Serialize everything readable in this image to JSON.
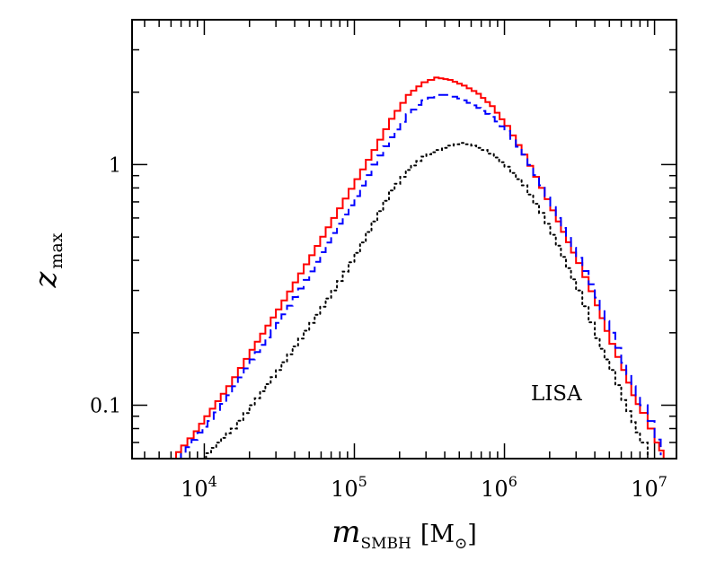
{
  "chart_data": {
    "type": "line",
    "xscale": "log",
    "yscale": "log",
    "xlim": [
      3300,
      14000000
    ],
    "ylim": [
      0.06,
      4.0
    ],
    "grid": false,
    "legend": "none",
    "title": "",
    "xlabel": {
      "var": "m",
      "sub": "SMBH",
      "unit_open": "[M",
      "unit_sym": "⊙",
      "unit_close": "]"
    },
    "ylabel": {
      "var": "z",
      "sub": "max"
    },
    "x_ticks": [
      {
        "value": 10000,
        "base": "10",
        "exp": "4"
      },
      {
        "value": 100000,
        "base": "10",
        "exp": "5"
      },
      {
        "value": 1000000,
        "base": "10",
        "exp": "6"
      },
      {
        "value": 10000000,
        "base": "10",
        "exp": "7"
      }
    ],
    "y_ticks": [
      {
        "value": 0.1,
        "label": "0.1"
      },
      {
        "value": 1,
        "label": "1"
      }
    ],
    "annotations": [
      {
        "text": "LISA",
        "x": 1500000,
        "y": 0.105
      }
    ],
    "series": [
      {
        "color": "#ff0000",
        "style": "solid",
        "x": [
          6000,
          7000,
          8500,
          10000,
          14000,
          20000,
          30000,
          50000,
          70000,
          100000,
          130000,
          170000,
          220000,
          280000,
          340000,
          420000,
          520000,
          650000,
          800000,
          1000000,
          1300000,
          1700000,
          2200000,
          3000000,
          4000000,
          5000000,
          6000000,
          7000000,
          8000000,
          9000000,
          10000000,
          11500000
        ],
        "y": [
          0.06,
          0.068,
          0.078,
          0.09,
          0.12,
          0.17,
          0.25,
          0.42,
          0.6,
          0.87,
          1.15,
          1.55,
          1.95,
          2.2,
          2.3,
          2.25,
          2.13,
          1.97,
          1.75,
          1.45,
          1.1,
          0.8,
          0.58,
          0.39,
          0.26,
          0.18,
          0.14,
          0.11,
          0.093,
          0.08,
          0.07,
          0.06
        ]
      },
      {
        "color": "#0000ff",
        "style": "dashed",
        "x": [
          6500,
          7500,
          9000,
          10500,
          14000,
          20000,
          30000,
          50000,
          70000,
          100000,
          130000,
          170000,
          220000,
          280000,
          340000,
          420000,
          520000,
          650000,
          800000,
          1000000,
          1300000,
          1700000,
          2200000,
          3000000,
          4000000,
          5000000,
          6000000,
          7000000,
          8000000,
          9000000,
          10000000,
          11000000
        ],
        "y": [
          0.06,
          0.067,
          0.077,
          0.086,
          0.11,
          0.155,
          0.22,
          0.36,
          0.52,
          0.74,
          1.0,
          1.3,
          1.62,
          1.85,
          1.95,
          1.95,
          1.85,
          1.72,
          1.58,
          1.38,
          1.1,
          0.82,
          0.6,
          0.41,
          0.28,
          0.2,
          0.15,
          0.12,
          0.1,
          0.086,
          0.072,
          0.062
        ]
      },
      {
        "color": "#000000",
        "style": "dotted",
        "x": [
          9500,
          12000,
          15000,
          20000,
          30000,
          50000,
          70000,
          100000,
          130000,
          170000,
          220000,
          280000,
          350000,
          420000,
          500000,
          600000,
          700000,
          850000,
          1000000,
          1300000,
          1700000,
          2200000,
          3000000,
          4000000,
          5000000,
          6000000,
          7000000,
          8000000,
          9000000
        ],
        "y": [
          0.06,
          0.07,
          0.08,
          0.1,
          0.14,
          0.22,
          0.3,
          0.43,
          0.58,
          0.78,
          0.95,
          1.08,
          1.15,
          1.2,
          1.23,
          1.2,
          1.15,
          1.07,
          0.98,
          0.82,
          0.63,
          0.46,
          0.3,
          0.19,
          0.14,
          0.105,
          0.085,
          0.07,
          0.06
        ]
      }
    ]
  }
}
